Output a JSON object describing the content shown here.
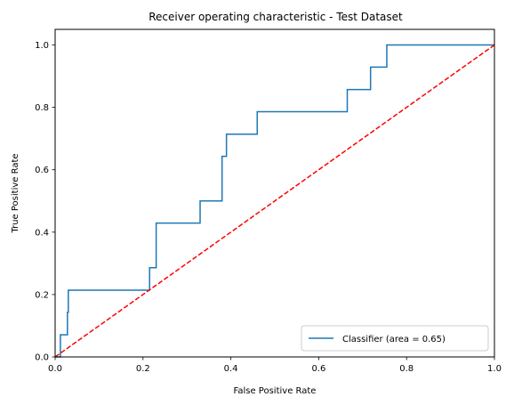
{
  "chart_data": {
    "type": "line",
    "title": "Receiver operating characteristic - Test Dataset",
    "xlabel": "False Positive Rate",
    "ylabel": "True Positive Rate",
    "xlim": [
      0.0,
      1.0
    ],
    "ylim": [
      0.0,
      1.05
    ],
    "xticks": [
      "0.0",
      "0.2",
      "0.4",
      "0.6",
      "0.8",
      "1.0"
    ],
    "yticks": [
      "0.0",
      "0.2",
      "0.4",
      "0.6",
      "0.8",
      "1.0"
    ],
    "grid": false,
    "legend_position": "lower-right",
    "series": [
      {
        "name": "Classifier (area = 0.65)",
        "color": "#1f77b4",
        "style": "solid",
        "x": [
          0.0,
          0.012,
          0.012,
          0.028,
          0.028,
          0.03,
          0.03,
          0.215,
          0.215,
          0.23,
          0.23,
          0.33,
          0.33,
          0.38,
          0.38,
          0.39,
          0.39,
          0.46,
          0.46,
          0.665,
          0.665,
          0.718,
          0.718,
          0.755,
          0.755,
          1.0
        ],
        "y": [
          0.0,
          0.0,
          0.071,
          0.071,
          0.143,
          0.143,
          0.214,
          0.214,
          0.286,
          0.286,
          0.429,
          0.429,
          0.5,
          0.5,
          0.643,
          0.643,
          0.714,
          0.714,
          0.786,
          0.786,
          0.857,
          0.857,
          0.929,
          0.929,
          1.0,
          1.0
        ]
      },
      {
        "name": "",
        "color": "#ff0000",
        "style": "dashed",
        "x": [
          0.0,
          1.0
        ],
        "y": [
          0.0,
          1.0
        ]
      }
    ]
  }
}
